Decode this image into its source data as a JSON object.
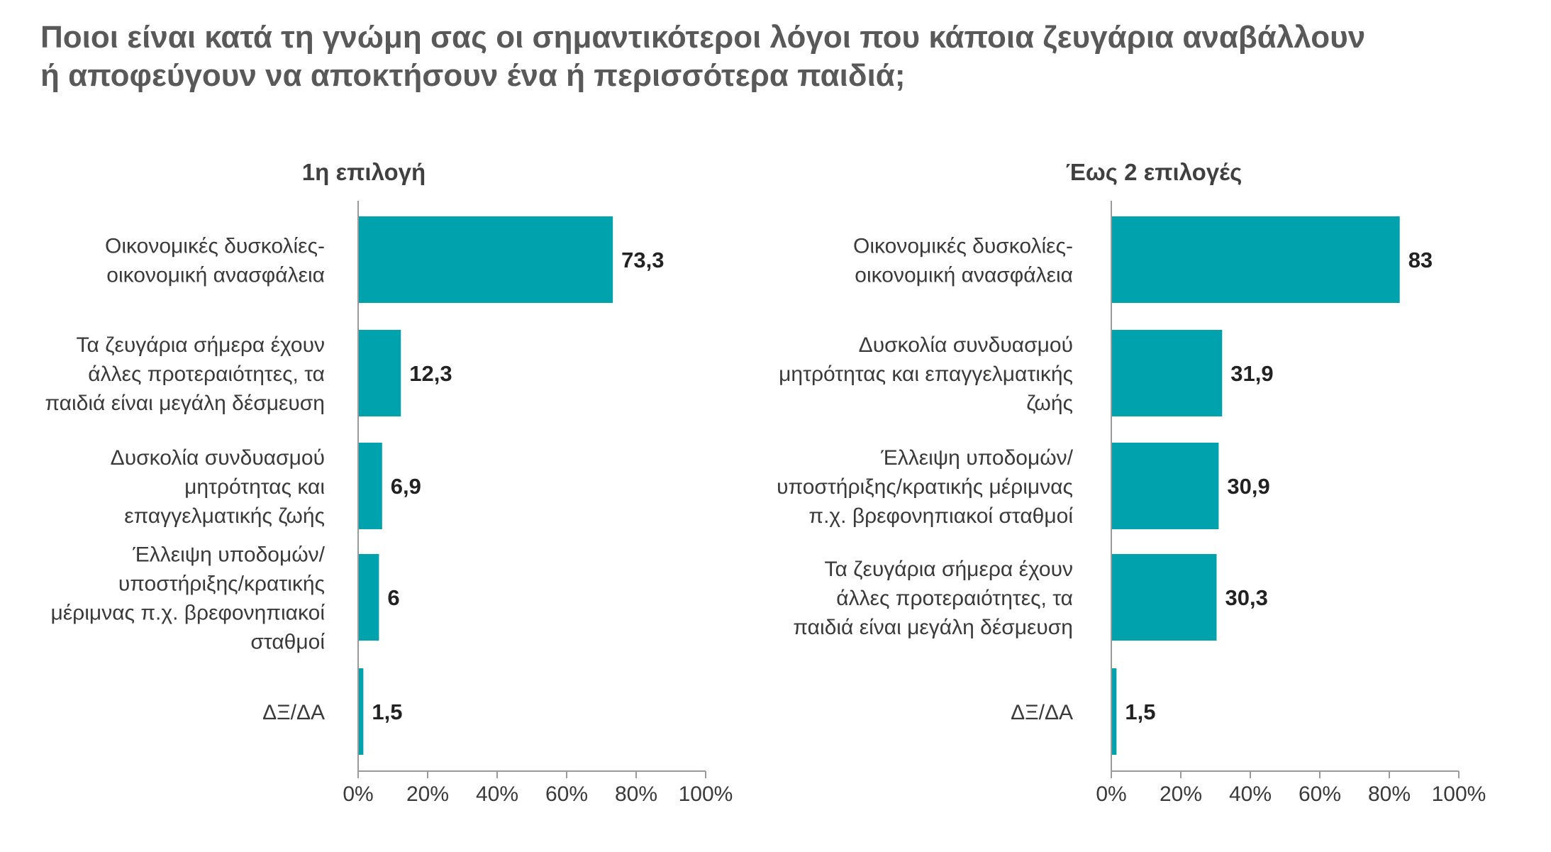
{
  "title": {
    "line1": "Ποιοι είναι κατά τη γνώμη σας οι σημαντικότεροι λόγοι που κάποια ζευγάρια αναβάλλουν",
    "line2": "ή αποφεύγουν να αποκτήσουν ένα ή περισσότερα παιδιά;"
  },
  "colors": {
    "bar": "#00A3AD",
    "title": "#595959",
    "text": "#3a3a3a",
    "axis": "#999999"
  },
  "chart_data": [
    {
      "type": "bar",
      "orientation": "horizontal",
      "title": "1η επιλογή",
      "categories": [
        [
          "Οικονομικές δυσκολίες-",
          "οικονομική ανασφάλεια"
        ],
        [
          "Τα ζευγάρια σήμερα έχουν",
          "άλλες προτεραιότητες, τα",
          "παιδιά είναι μεγάλη δέσμευση"
        ],
        [
          "Δυσκολία συνδυασμού",
          "μητρότητας και",
          "επαγγελματικής ζωής"
        ],
        [
          "Έλλειψη υποδομών/",
          "υποστήριξης/κρατικής",
          "μέριμνας π.χ. βρεφονηπιακοί",
          "σταθμοί"
        ],
        [
          "ΔΞ/ΔΑ"
        ]
      ],
      "values": [
        73.3,
        12.3,
        6.9,
        6,
        1.5
      ],
      "value_labels": [
        "73,3",
        "12,3",
        "6,9",
        "6",
        "1,5"
      ],
      "xlim": [
        0,
        100
      ],
      "ticks": [
        "0%",
        "20%",
        "40%",
        "60%",
        "80%",
        "100%"
      ],
      "grid": false
    },
    {
      "type": "bar",
      "orientation": "horizontal",
      "title": "Έως 2 επιλογές",
      "categories": [
        [
          "Οικονομικές δυσκολίες-",
          "οικονομική ανασφάλεια"
        ],
        [
          "Δυσκολία συνδυασμού",
          "μητρότητας και επαγγελματικής",
          "ζωής"
        ],
        [
          "Έλλειψη υποδομών/",
          "υποστήριξης/κρατικής μέριμνας",
          "π.χ. βρεφονηπιακοί σταθμοί"
        ],
        [
          "Τα ζευγάρια σήμερα έχουν",
          "άλλες προτεραιότητες, τα",
          "παιδιά είναι μεγάλη δέσμευση"
        ],
        [
          "ΔΞ/ΔΑ"
        ]
      ],
      "values": [
        83,
        31.9,
        30.9,
        30.3,
        1.5
      ],
      "value_labels": [
        "83",
        "31,9",
        "30,9",
        "30,3",
        "1,5"
      ],
      "xlim": [
        0,
        100
      ],
      "ticks": [
        "0%",
        "20%",
        "40%",
        "60%",
        "80%",
        "100%"
      ],
      "grid": false
    }
  ]
}
